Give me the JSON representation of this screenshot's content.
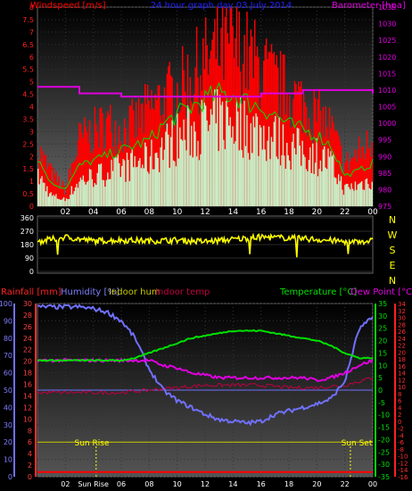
{
  "header": {
    "windspeed_label": "Windspeed [m/s]",
    "title": "24 hour graph day  03 July 2014",
    "barometer_label": "Barometer [hpa]"
  },
  "colors": {
    "wind": "#ff0000",
    "gust_area": "#c8f0c8",
    "gust_line": "#00e000",
    "barometer": "#e000e0",
    "direction": "#ffff00",
    "temperature": "#00e000",
    "dewpoint": "#e000e0",
    "humidity": "#7070ff",
    "indoor_temp": "#c00040",
    "rainfall": "#ff0000",
    "indoor_hum": "#c8c800"
  },
  "direction_panel": {
    "compass_letters": [
      "N",
      "W",
      "S",
      "E",
      "N"
    ]
  },
  "bottom_header": {
    "rainfall": "Rainfall [mm]",
    "humidity": "Humidity [%]",
    "indoor_hum": "Indoor hum",
    "indoor_temp": "Indoor temp",
    "temperature": "Temperature [°C]",
    "dewpoint": "Dew Point [°C]"
  },
  "annotations": {
    "sunrise": "Sun Rise",
    "sunset": "Sun Set",
    "sunrise_axis_label": "Sun Rise"
  },
  "chart_data": [
    {
      "type": "line",
      "panel": "wind_and_barometer",
      "x_ticks": [
        "02",
        "04",
        "06",
        "08",
        "10",
        "12",
        "14",
        "16",
        "18",
        "20",
        "22",
        "00"
      ],
      "y_left": {
        "label": "Windspeed [m/s]",
        "ticks": [
          "0",
          "0.5",
          "1",
          "1.5",
          "2",
          "2.5",
          "3",
          "3.5",
          "4",
          "4.5",
          "5",
          "5.5",
          "6",
          "6.5",
          "7",
          "7.5",
          "8"
        ],
        "range": [
          0,
          8
        ]
      },
      "y_right": {
        "label": "Barometer [hpa]",
        "ticks": [
          "975",
          "980",
          "985",
          "990",
          "995",
          "1000",
          "1005",
          "1010",
          "1015",
          "1020",
          "1025",
          "1030",
          "1035"
        ],
        "range": [
          975,
          1035
        ]
      },
      "series": [
        {
          "kind": "wind_avg",
          "x_hours": [
            0,
            1,
            2,
            3,
            4,
            5,
            6,
            7,
            8,
            9,
            10,
            11,
            12,
            13,
            14,
            15,
            16,
            17,
            18,
            19,
            20,
            21,
            22,
            23,
            24
          ],
          "values": [
            1.5,
            0.5,
            0.3,
            1.2,
            1.4,
            1.6,
            1.8,
            2.0,
            2.2,
            2.8,
            3.2,
            3.5,
            3.8,
            4.0,
            4.0,
            3.7,
            3.5,
            3.2,
            2.8,
            2.6,
            2.4,
            2.0,
            0.8,
            1.0,
            1.3
          ]
        },
        {
          "kind": "wind_gust",
          "x_hours": [
            0,
            1,
            2,
            3,
            4,
            5,
            6,
            7,
            8,
            9,
            10,
            11,
            12,
            13,
            14,
            15,
            16,
            17,
            18,
            19,
            20,
            21,
            22,
            23,
            24
          ],
          "values": [
            2.8,
            1.6,
            0.8,
            3.2,
            3.6,
            4.0,
            3.7,
            4.0,
            4.7,
            5.2,
            5.6,
            6.3,
            7.0,
            7.6,
            7.8,
            7.3,
            6.7,
            6.0,
            5.5,
            5.0,
            4.4,
            3.8,
            2.0,
            2.6,
            3.2
          ]
        },
        {
          "kind": "barometer",
          "x_hours": [
            0,
            1,
            2,
            3,
            4,
            5,
            6,
            7,
            8,
            9,
            10,
            11,
            12,
            13,
            14,
            15,
            16,
            17,
            18,
            19,
            20,
            21,
            22,
            23,
            24
          ],
          "values": [
            1011,
            1011,
            1011,
            1009,
            1009,
            1009,
            1008,
            1008,
            1008,
            1008,
            1008,
            1008,
            1008,
            1008,
            1008,
            1008,
            1009,
            1009,
            1009,
            1010,
            1010,
            1010,
            1010,
            1010,
            1009
          ]
        }
      ]
    },
    {
      "type": "scatter",
      "panel": "wind_direction",
      "y_ticks": [
        "0",
        "90",
        "180",
        "270",
        "360"
      ],
      "range": [
        0,
        360
      ],
      "series": [
        {
          "name": "direction",
          "x_hours": [
            0,
            2,
            4,
            6,
            8,
            10,
            12,
            14,
            16,
            18,
            20,
            22,
            24
          ],
          "values": [
            200,
            230,
            205,
            210,
            205,
            210,
            200,
            215,
            230,
            225,
            215,
            200,
            205
          ]
        }
      ]
    },
    {
      "type": "line",
      "panel": "temperature_humidity",
      "x_ticks": [
        "02",
        "Sun Rise",
        "06",
        "08",
        "10",
        "12",
        "14",
        "16",
        "18",
        "20",
        "22",
        "00"
      ],
      "y_humidity": {
        "ticks": [
          "0",
          "10",
          "20",
          "30",
          "40",
          "50",
          "60",
          "70",
          "80",
          "90",
          "100"
        ],
        "range": [
          0,
          100
        ]
      },
      "y_rain": {
        "ticks": [
          "0",
          "2",
          "4",
          "6",
          "8",
          "10",
          "12",
          "14",
          "16",
          "18",
          "20",
          "22",
          "24",
          "26",
          "28",
          "30"
        ],
        "range": [
          0,
          30
        ]
      },
      "y_temp": {
        "ticks": [
          "-35",
          "-30",
          "-25",
          "-20",
          "-15",
          "-10",
          "-5",
          "0",
          "5",
          "10",
          "15",
          "20",
          "25",
          "30",
          "35"
        ],
        "range": [
          -35,
          35
        ]
      },
      "y_temp_right": {
        "ticks": [
          "-16",
          "-14",
          "-12",
          "-10",
          "-8",
          "-6",
          "-4",
          "-2",
          "0",
          "2",
          "4",
          "6",
          "8",
          "10",
          "12",
          "14",
          "16",
          "18",
          "20",
          "22",
          "24",
          "26",
          "28",
          "30",
          "32",
          "34"
        ],
        "range": [
          -16,
          34
        ]
      },
      "series": [
        {
          "name": "Humidity [%]",
          "x_hours": [
            0,
            1,
            2,
            3,
            4,
            5,
            6,
            7,
            8,
            9,
            10,
            11,
            12,
            13,
            14,
            15,
            16,
            17,
            18,
            19,
            20,
            21,
            22,
            23,
            24
          ],
          "values": [
            98,
            98,
            98,
            98,
            97,
            95,
            90,
            80,
            62,
            50,
            44,
            40,
            36,
            33,
            32,
            31,
            32,
            36,
            38,
            40,
            42,
            45,
            55,
            85,
            92
          ]
        },
        {
          "name": "Temperature [°C]",
          "x_hours": [
            0,
            1,
            2,
            3,
            4,
            5,
            6,
            7,
            8,
            9,
            10,
            11,
            12,
            13,
            14,
            15,
            16,
            17,
            18,
            19,
            20,
            21,
            22,
            23,
            24
          ],
          "values": [
            12,
            12,
            12,
            12,
            12,
            12,
            12,
            13,
            15,
            17,
            19,
            21,
            22,
            23,
            24,
            24,
            24,
            23,
            22,
            21,
            20,
            18,
            15,
            13,
            13
          ]
        },
        {
          "name": "Dew Point [°C]",
          "x_hours": [
            0,
            1,
            2,
            3,
            4,
            5,
            6,
            7,
            8,
            9,
            10,
            11,
            12,
            13,
            14,
            15,
            16,
            17,
            18,
            19,
            20,
            21,
            22,
            23,
            24
          ],
          "values": [
            12,
            12,
            12,
            12,
            12,
            12,
            12,
            12,
            12,
            10,
            9,
            7,
            6,
            5,
            5,
            5,
            5,
            5,
            5,
            5,
            4,
            5,
            7,
            10,
            12
          ]
        },
        {
          "name": "Indoor temp",
          "x_hours": [
            0,
            3,
            6,
            8,
            10,
            12,
            14,
            16,
            18,
            20,
            22,
            24
          ],
          "values": [
            -1,
            -1,
            -1,
            0,
            1,
            2,
            2,
            2,
            1,
            1,
            2,
            5
          ]
        },
        {
          "name": "Rainfall [mm]",
          "x_hours": [
            0,
            24
          ],
          "values": [
            0.8,
            0.8
          ]
        }
      ],
      "reference_lines": {
        "zero_temp": 0,
        "indoor_hum_level": 10
      }
    }
  ]
}
